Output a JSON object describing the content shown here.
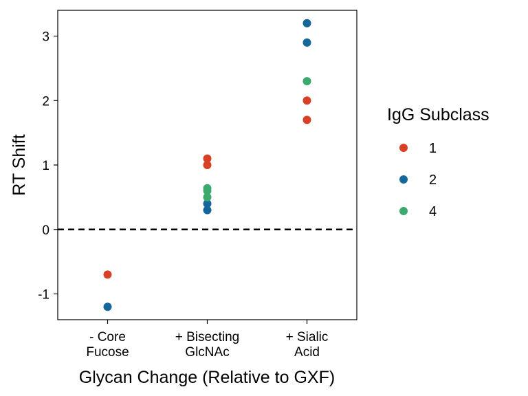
{
  "chart_data": {
    "type": "scatter",
    "xlabel": "Glycan Change (Relative to GXF)",
    "ylabel": "RT Shift",
    "categories": [
      [
        "- Core",
        "Fucose"
      ],
      [
        "+ Bisecting",
        "GlcNAc"
      ],
      [
        "+ Sialic",
        "Acid"
      ]
    ],
    "ylim": [
      -1.4,
      3.4
    ],
    "yticks": [
      -1,
      0,
      1,
      2,
      3
    ],
    "reference_line": {
      "y": 0,
      "style": "dashed"
    },
    "grid": false,
    "legend": {
      "title": "IgG Subclass",
      "placement": "right"
    },
    "series": [
      {
        "name": "1",
        "color": "#D94126",
        "points": [
          {
            "category": 0,
            "y": -0.7
          },
          {
            "category": 1,
            "y": 1.1
          },
          {
            "category": 1,
            "y": 1.0
          },
          {
            "category": 2,
            "y": 2.0
          },
          {
            "category": 2,
            "y": 1.7
          }
        ]
      },
      {
        "name": "2",
        "color": "#15669A",
        "points": [
          {
            "category": 0,
            "y": -1.2
          },
          {
            "category": 1,
            "y": 0.4
          },
          {
            "category": 1,
            "y": 0.3
          },
          {
            "category": 2,
            "y": 3.2
          },
          {
            "category": 2,
            "y": 2.9
          }
        ]
      },
      {
        "name": "4",
        "color": "#3BAA6E",
        "points": [
          {
            "category": 1,
            "y": 0.64
          },
          {
            "category": 1,
            "y": 0.6
          },
          {
            "category": 1,
            "y": 0.5
          },
          {
            "category": 2,
            "y": 2.3
          }
        ]
      }
    ]
  }
}
